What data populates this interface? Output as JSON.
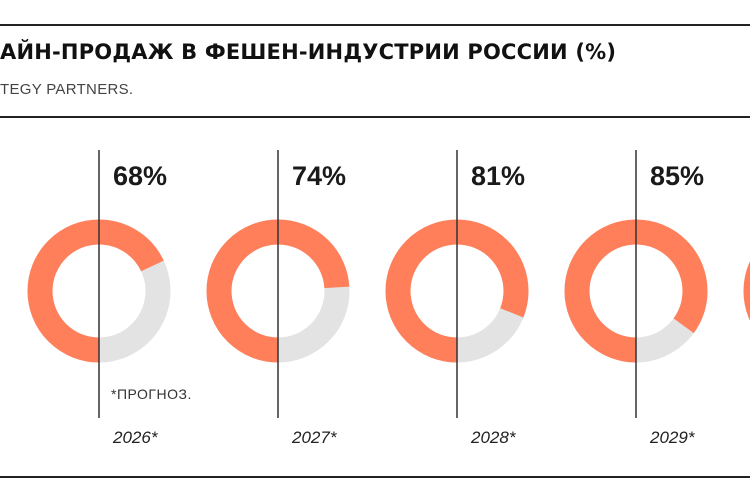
{
  "chart_data": {
    "type": "pie",
    "title": "АЙН-ПРОДАЖ В ФЕШЕН-ИНДУСТРИИ РОССИИ (%)",
    "source": "TEGY PARTNERS.",
    "note": "*ПРОГНОЗ.",
    "categories": [
      "2026*",
      "2027*",
      "2028*",
      "2029*"
    ],
    "values": [
      68,
      74,
      81,
      85
    ],
    "value_labels": [
      "68%",
      "74%",
      "81%",
      "85%"
    ],
    "unit": "%",
    "max": 100
  },
  "colors": {
    "value": "#ff7f5a",
    "rest": "#e3e3e3",
    "line": "#333333",
    "rule": "#222222"
  }
}
